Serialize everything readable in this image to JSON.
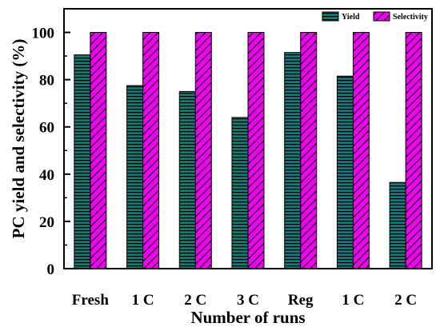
{
  "chart_data": {
    "type": "bar",
    "xlabel": "Number of runs",
    "ylabel": "PC yield and selectivity (%)",
    "categories": [
      "Fresh",
      "1 C",
      "2  C",
      "3 C",
      "Reg",
      "1 C",
      "2 C"
    ],
    "series": [
      {
        "name": "Yield",
        "values": [
          90.5,
          77.5,
          75,
          64,
          91.5,
          81.5,
          36.5
        ],
        "color": "#0a7f79",
        "pattern": "horizontal-lines"
      },
      {
        "name": "Selectivity",
        "values": [
          100,
          100,
          100,
          100,
          100,
          100,
          100
        ],
        "color": "#f000f0",
        "pattern": "diagonal-lines"
      }
    ],
    "ylim": [
      0,
      110
    ],
    "yticks": [
      0,
      20,
      40,
      60,
      80,
      100
    ],
    "grid": false,
    "legend_position": "top-right"
  }
}
